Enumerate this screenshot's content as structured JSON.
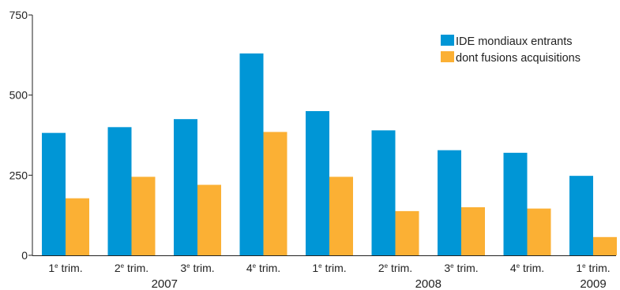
{
  "chart_data": {
    "type": "bar",
    "title": "",
    "xlabel": "",
    "ylabel": "",
    "ylim": [
      0,
      750
    ],
    "yticks": [
      "0",
      "250",
      "500",
      "750"
    ],
    "categories": [
      {
        "num": "1",
        "sup": "e",
        "rest": " trim."
      },
      {
        "num": "2",
        "sup": "e",
        "rest": " trim."
      },
      {
        "num": "3",
        "sup": "e",
        "rest": " trim."
      },
      {
        "num": "4",
        "sup": "e",
        "rest": " trim."
      },
      {
        "num": "1",
        "sup": "e",
        "rest": " trim."
      },
      {
        "num": "2",
        "sup": "e",
        "rest": " trim."
      },
      {
        "num": "3",
        "sup": "e",
        "rest": " trim."
      },
      {
        "num": "4",
        "sup": "e",
        "rest": " trim."
      },
      {
        "num": "1",
        "sup": "e",
        "rest": " trim."
      }
    ],
    "year_groups": [
      {
        "label": "2007",
        "from": 0,
        "to": 3
      },
      {
        "label": "2008",
        "from": 4,
        "to": 7
      },
      {
        "label": "2009",
        "from": 8,
        "to": 8
      }
    ],
    "series": [
      {
        "name": "IDE  mondiaux entrants",
        "color": "#0096d6",
        "values": [
          382,
          400,
          425,
          630,
          450,
          390,
          328,
          320,
          248
        ]
      },
      {
        "name": "dont fusions acquisitions",
        "color": "#fbb034",
        "values": [
          178,
          245,
          220,
          385,
          245,
          138,
          150,
          146,
          57
        ]
      }
    ],
    "legend_position": "top-right",
    "grid": false
  }
}
